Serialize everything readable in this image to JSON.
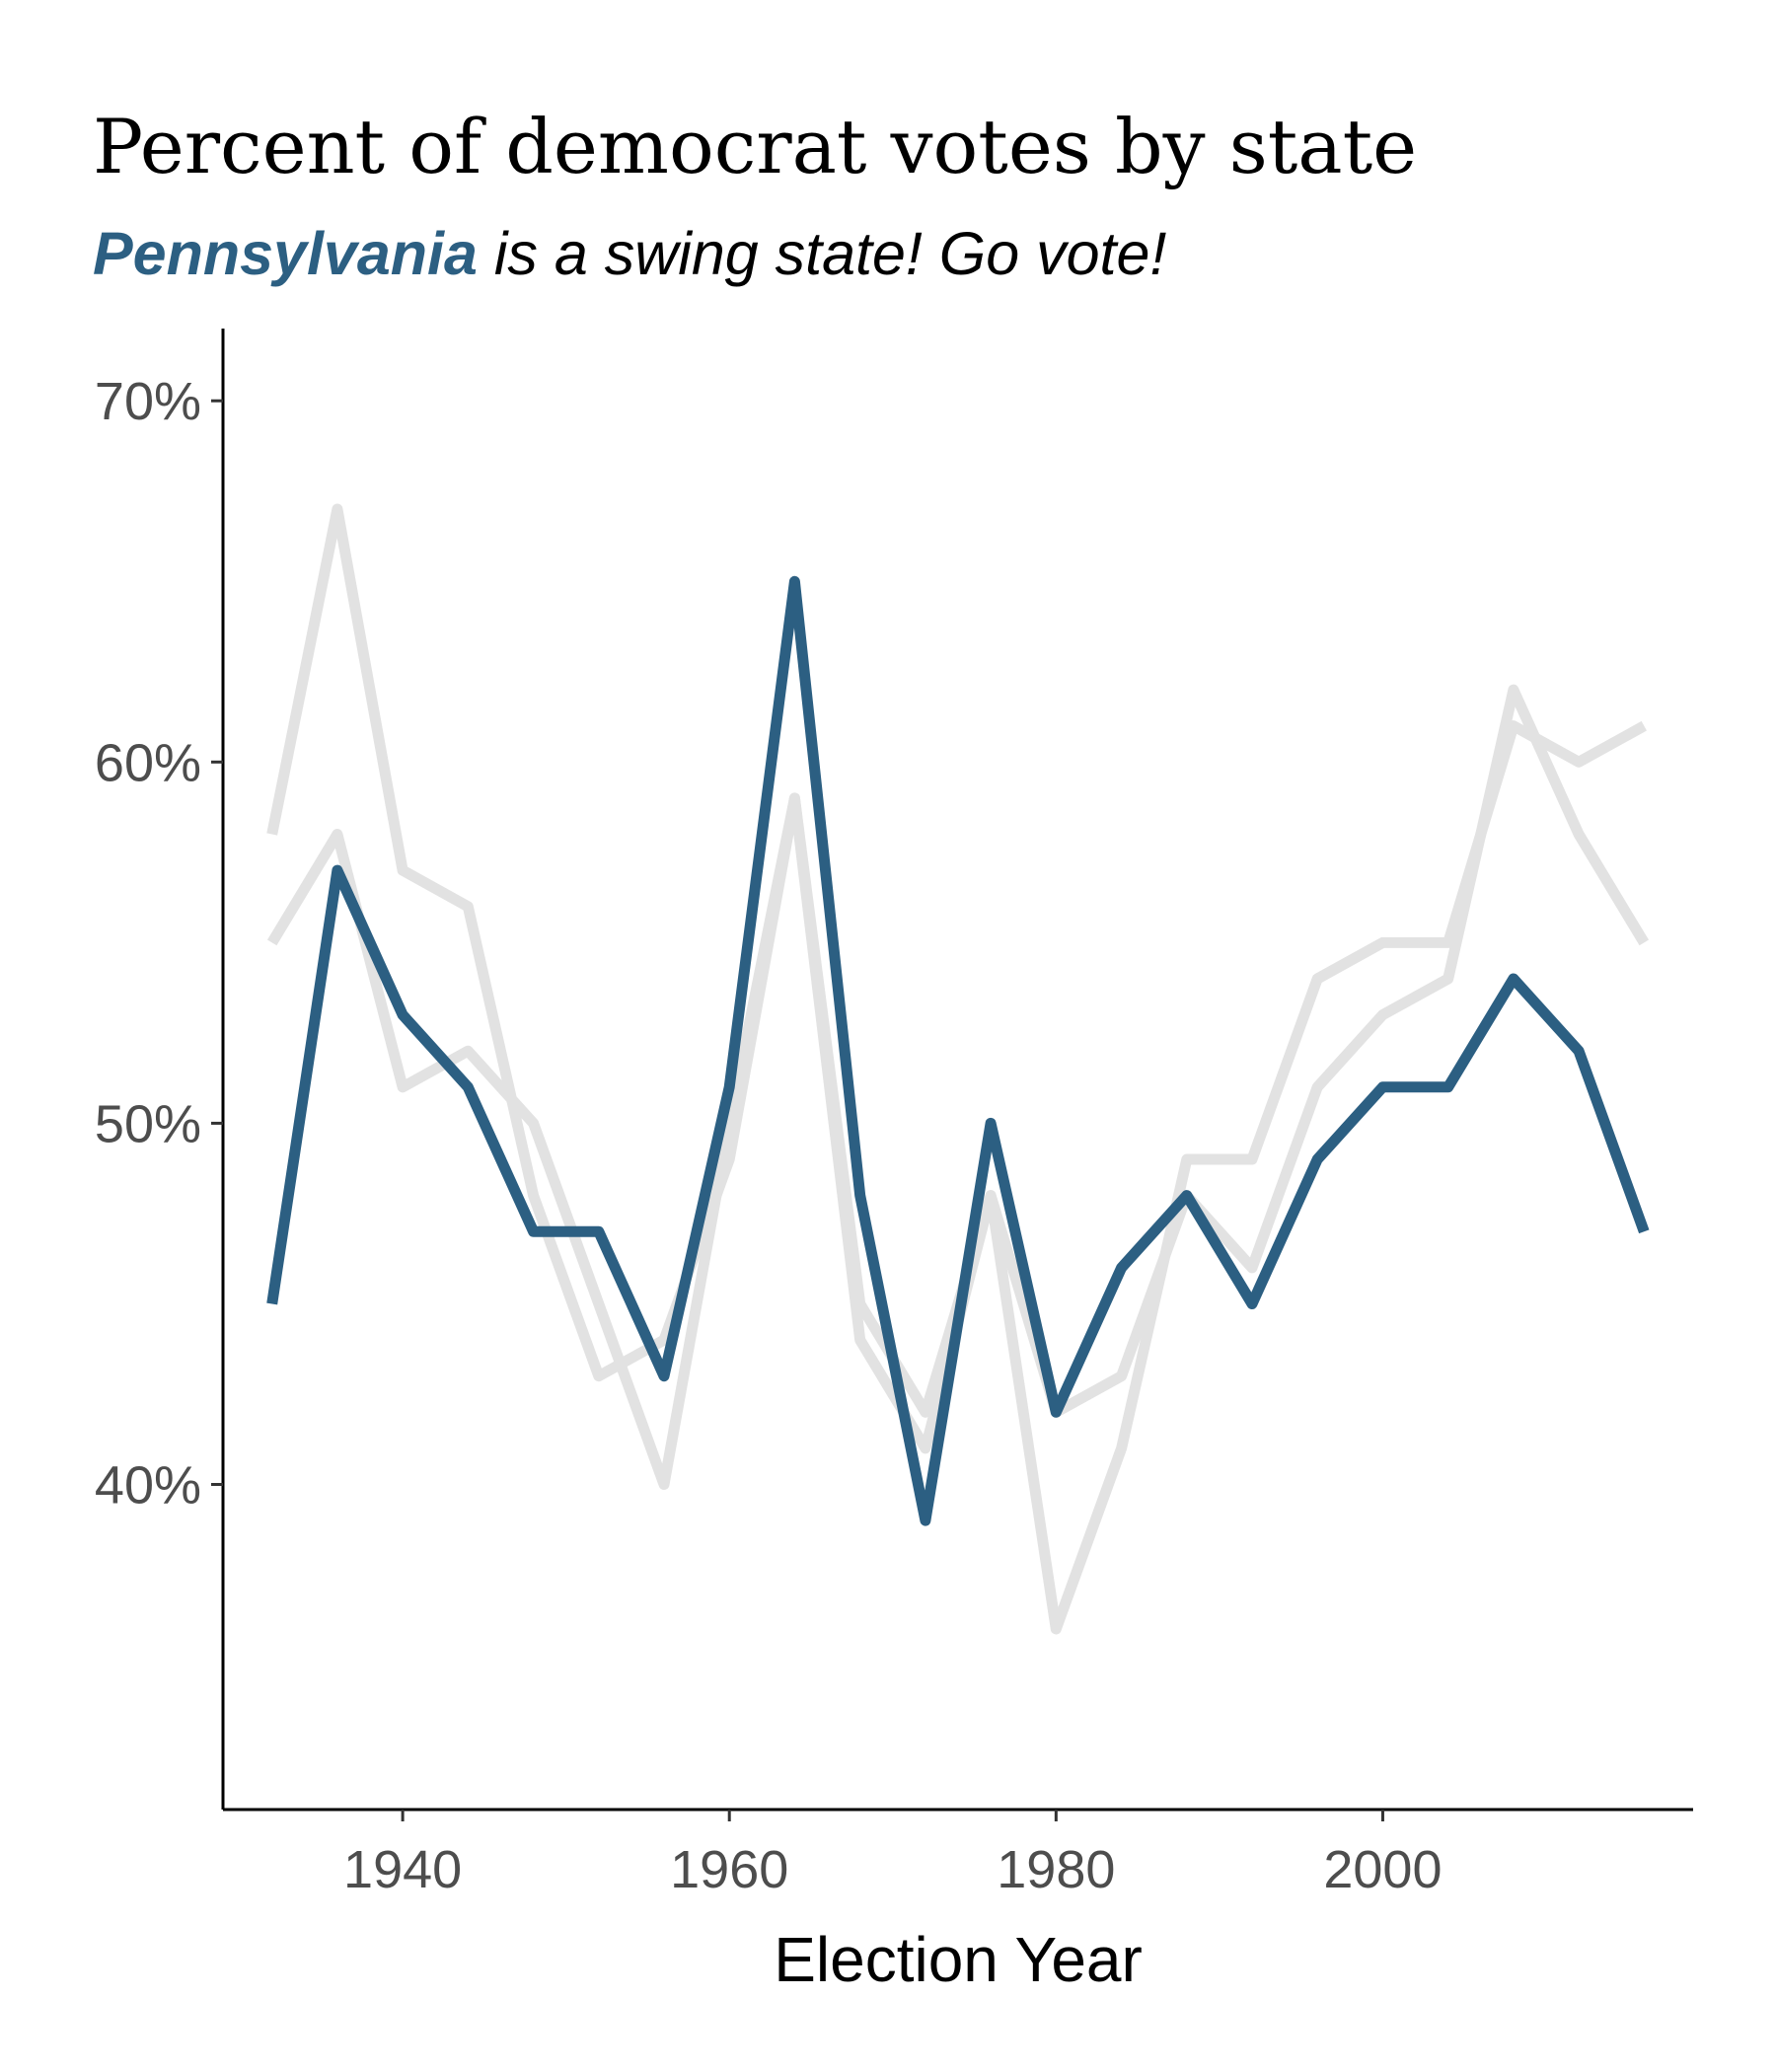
{
  "chart_data": {
    "type": "line",
    "title": "Percent of democrat votes by state",
    "subtitle": {
      "highlight": "Pennsylvania",
      "rest": " is a swing state! Go vote!"
    },
    "xlabel": "Election Year",
    "ylabel": "",
    "xlim": [
      1929,
      2019
    ],
    "ylim": [
      31,
      72
    ],
    "x_ticks": [
      1940,
      1960,
      1980,
      2000
    ],
    "y_ticks": [
      40,
      50,
      60,
      70
    ],
    "y_tick_labels": [
      "40%",
      "50%",
      "60%",
      "70%"
    ],
    "x_tick_labels": [
      "1940",
      "1960",
      "1980",
      "2000"
    ],
    "grid": false,
    "legend": "none",
    "x": [
      1932,
      1936,
      1940,
      1944,
      1948,
      1952,
      1956,
      1960,
      1964,
      1968,
      1972,
      1976,
      1980,
      1984,
      1988,
      1992,
      1996,
      2000,
      2004,
      2008,
      2012,
      2016
    ],
    "highlight_color": "#2c5f82",
    "background_color": "#e2e2e2",
    "series": [
      {
        "highlight": true,
        "values": [
          45,
          57,
          53,
          51,
          47,
          47,
          43,
          51,
          65,
          48,
          39,
          50,
          42,
          46,
          48,
          45,
          49,
          51,
          51,
          54,
          52,
          47
        ]
      },
      {
        "highlight": false,
        "values": [
          58,
          67,
          57,
          56,
          48,
          43,
          44,
          49,
          59,
          44,
          41,
          48,
          36,
          41,
          49,
          49,
          54,
          55,
          55,
          61,
          60,
          61
        ]
      },
      {
        "highlight": false,
        "values": [
          55,
          58,
          51,
          52,
          50,
          45,
          40,
          50,
          59,
          45,
          42,
          48,
          42,
          43,
          48,
          46,
          51,
          53,
          54,
          62,
          58,
          55
        ]
      }
    ]
  }
}
